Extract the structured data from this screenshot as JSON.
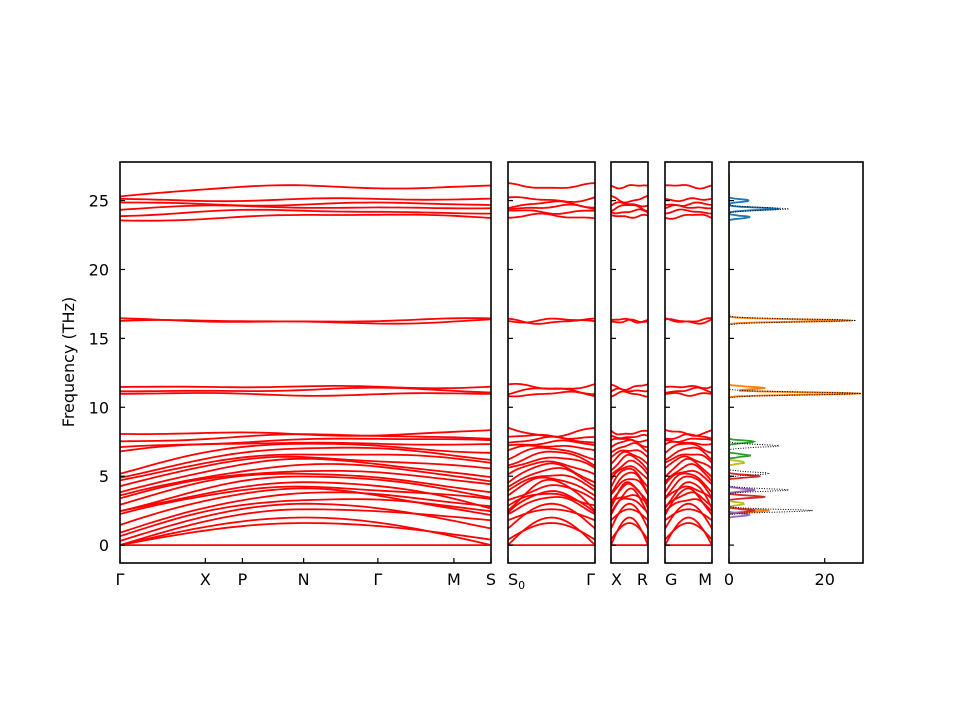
{
  "chart_data": {
    "type": "line",
    "ylabel": "Frequency (THz)",
    "ylim": [
      -1.3,
      27.8
    ],
    "yticks": [
      0,
      5,
      10,
      15,
      20,
      25
    ],
    "line_color": "#ff0000",
    "zero_line_color": "#0000cc",
    "panels": [
      {
        "name": "panel-1",
        "path_segments": [
          "Γ",
          "X",
          "P",
          "N",
          "Γ",
          "M",
          "S"
        ],
        "tick_labels": [
          {
            "label": "Γ",
            "pos": 0.0
          },
          {
            "label": "X",
            "pos": 0.23
          },
          {
            "label": "P",
            "pos": 0.33
          },
          {
            "label": "N",
            "pos": 0.495
          },
          {
            "label": "Γ",
            "pos": 0.695
          },
          {
            "label": "M",
            "pos": 0.9
          },
          {
            "label": "S",
            "pos": 1.0
          }
        ]
      },
      {
        "name": "panel-2",
        "tick_labels": [
          {
            "label": "S",
            "sub": "0",
            "pos": 0.0
          },
          {
            "label": "Γ",
            "pos": 1.0
          }
        ]
      },
      {
        "name": "panel-3",
        "tick_labels": [
          {
            "label": "X",
            "pos": 0.0
          },
          {
            "label": "R",
            "pos": 1.0
          }
        ]
      },
      {
        "name": "panel-4",
        "tick_labels": [
          {
            "label": "G",
            "pos": 0.0
          },
          {
            "label": "M",
            "pos": 1.0
          }
        ]
      }
    ],
    "bands": [
      [
        0.0,
        0.0,
        0.0
      ],
      [
        0.0,
        1.6,
        0.4
      ],
      [
        0.0,
        2.0,
        0.0
      ],
      [
        0.0,
        2.6,
        1.8
      ],
      [
        0.3,
        3.0,
        1.2
      ],
      [
        0.6,
        3.4,
        2.4
      ],
      [
        1.0,
        3.7,
        2.9
      ],
      [
        1.5,
        4.0,
        2.2
      ],
      [
        2.1,
        4.3,
        3.2
      ],
      [
        2.4,
        4.6,
        2.6
      ],
      [
        2.6,
        4.9,
        3.6
      ],
      [
        3.0,
        5.2,
        3.9
      ],
      [
        3.3,
        5.5,
        4.3
      ],
      [
        3.6,
        5.8,
        4.6
      ],
      [
        3.9,
        6.1,
        5.0
      ],
      [
        4.2,
        6.4,
        5.5
      ],
      [
        4.6,
        6.7,
        5.9
      ],
      [
        5.0,
        7.0,
        6.3
      ],
      [
        5.3,
        7.3,
        6.8
      ],
      [
        6.7,
        7.5,
        7.2
      ],
      [
        7.0,
        7.7,
        7.5
      ],
      [
        7.6,
        7.9,
        7.8
      ],
      [
        8.1,
        8.0,
        8.4
      ],
      [
        10.9,
        11.0,
        10.9
      ],
      [
        11.2,
        11.3,
        11.1
      ],
      [
        11.6,
        11.4,
        11.6
      ],
      [
        16.2,
        16.2,
        16.3
      ],
      [
        16.3,
        16.3,
        16.3
      ],
      [
        23.6,
        23.9,
        23.8
      ],
      [
        24.0,
        24.2,
        24.2
      ],
      [
        24.3,
        24.6,
        24.4
      ],
      [
        24.8,
        24.8,
        24.6
      ],
      [
        25.2,
        25.0,
        25.2
      ],
      [
        25.3,
        26.0,
        26.1
      ]
    ],
    "dos": {
      "xticks": [
        0,
        20
      ],
      "xlim": [
        0,
        28
      ],
      "total_line_color": "#000000",
      "series": [
        {
          "color": "#1f77b4",
          "peaks": [
            [
              23.8,
              4
            ],
            [
              24.4,
              10
            ],
            [
              25.0,
              4
            ]
          ]
        },
        {
          "color": "#ff7f0e",
          "peaks": [
            [
              16.3,
              25
            ],
            [
              11.0,
              27
            ],
            [
              11.4,
              7
            ],
            [
              2.5,
              8
            ]
          ]
        },
        {
          "color": "#2ca02c",
          "peaks": [
            [
              7.5,
              5
            ],
            [
              6.5,
              4
            ]
          ]
        },
        {
          "color": "#d62728",
          "peaks": [
            [
              5.0,
              6
            ],
            [
              3.5,
              7
            ],
            [
              2.5,
              5
            ]
          ]
        },
        {
          "color": "#9467bd",
          "peaks": [
            [
              4.0,
              5
            ],
            [
              2.2,
              4
            ]
          ]
        },
        {
          "color": "#bcbd22",
          "peaks": [
            [
              6.0,
              3
            ],
            [
              3.0,
              3
            ]
          ]
        }
      ],
      "total_peaks": [
        [
          24.4,
          12
        ],
        [
          16.3,
          26
        ],
        [
          11.0,
          27
        ],
        [
          7.2,
          10
        ],
        [
          5.2,
          8
        ],
        [
          4.0,
          12
        ],
        [
          2.5,
          17
        ]
      ]
    }
  }
}
